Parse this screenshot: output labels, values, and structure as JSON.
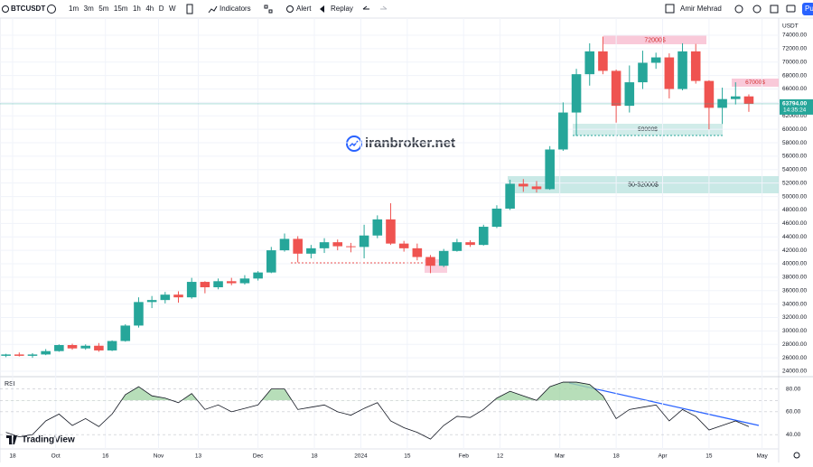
{
  "toolbar": {
    "symbol": "BTCUSDT",
    "intervals": [
      "1m",
      "3m",
      "5m",
      "15m",
      "1h",
      "4h",
      "D",
      "W"
    ],
    "indicators": "Indicators",
    "alert": "Alert",
    "replay": "Replay",
    "user": "Amir Mehrad",
    "publish": "Pu"
  },
  "watermark": "iranbroker.net",
  "logo": "TradingView",
  "chart_data": [
    {
      "type": "candlestick",
      "currency": "USDT",
      "x": [
        -2,
        2,
        6,
        10,
        14,
        18,
        22,
        26,
        30,
        34,
        38,
        42,
        46,
        50,
        54,
        58,
        62,
        66,
        70,
        74,
        78,
        82,
        86,
        90,
        94,
        98,
        102,
        106,
        110,
        114,
        118,
        122,
        126,
        130,
        134,
        138,
        142,
        146,
        150,
        154,
        158,
        162,
        166,
        170,
        174,
        178,
        182,
        186,
        190,
        194,
        198,
        202,
        206,
        210,
        214,
        218,
        222
      ],
      "open": [
        26300,
        26500,
        26300,
        26500,
        27000,
        27900,
        27400,
        27800,
        27100,
        28500,
        30800,
        34300,
        34600,
        35400,
        35000,
        37300,
        36500,
        37400,
        37100,
        37800,
        38700,
        42000,
        43700,
        41500,
        42300,
        43200,
        42600,
        42500,
        44200,
        46600,
        43000,
        42300,
        41000,
        39700,
        41900,
        43200,
        42800,
        45500,
        48200,
        51900,
        51500,
        51100,
        57000,
        62500,
        68200,
        71600,
        68700,
        63500,
        67000,
        69900,
        70700,
        66000,
        71600,
        67200,
        63200,
        64500,
        64900
      ],
      "high": [
        26600,
        26800,
        26700,
        27300,
        28000,
        28100,
        28000,
        28200,
        28600,
        31000,
        35000,
        35200,
        35800,
        35900,
        37900,
        37400,
        37800,
        37900,
        38300,
        38900,
        42500,
        44500,
        44100,
        42800,
        43800,
        43600,
        43100,
        45800,
        47200,
        49000,
        43400,
        43000,
        41300,
        42200,
        43700,
        43500,
        45800,
        48700,
        52500,
        52600,
        52300,
        57500,
        64000,
        69000,
        72800,
        73800,
        68900,
        69500,
        71700,
        71400,
        71300,
        72800,
        72700,
        67300,
        66200,
        67000,
        65200
      ],
      "low": [
        26100,
        26200,
        26000,
        26400,
        26900,
        27200,
        27200,
        26900,
        27000,
        28400,
        30500,
        33400,
        34100,
        34200,
        34800,
        35600,
        36200,
        36800,
        36900,
        37500,
        38600,
        41800,
        40200,
        40800,
        41600,
        42000,
        41700,
        40800,
        43800,
        42800,
        41800,
        40500,
        38600,
        39500,
        41800,
        42500,
        42700,
        45300,
        48000,
        50700,
        50600,
        51000,
        56800,
        59000,
        66500,
        68200,
        61000,
        62500,
        66000,
        69000,
        64600,
        65800,
        66800,
        60000,
        60800,
        63700,
        62600
      ],
      "close": [
        26500,
        26300,
        26500,
        27000,
        27900,
        27400,
        27800,
        27100,
        28500,
        30800,
        34300,
        34600,
        35400,
        35000,
        37300,
        36500,
        37400,
        37100,
        37800,
        38700,
        42000,
        43700,
        41500,
        42300,
        43200,
        42600,
        42500,
        44200,
        46600,
        43000,
        42300,
        41000,
        39700,
        41900,
        43200,
        42800,
        45500,
        48200,
        51900,
        51500,
        51100,
        57000,
        62500,
        68200,
        71600,
        68700,
        63500,
        67000,
        69900,
        70700,
        66000,
        71600,
        67200,
        63200,
        64500,
        64900,
        63794
      ],
      "up_color": "#26a69a",
      "down_color": "#ef5350",
      "xlim": [
        -3.8,
        231
      ],
      "xticks": [
        {
          "value": 0,
          "label": "18"
        },
        {
          "value": 13,
          "label": "Oct"
        },
        {
          "value": 28,
          "label": "16"
        },
        {
          "value": 44,
          "label": "Nov"
        },
        {
          "value": 56,
          "label": "13"
        },
        {
          "value": 74,
          "label": "Dec"
        },
        {
          "value": 91,
          "label": "18"
        },
        {
          "value": 105,
          "label": "2024"
        },
        {
          "value": 119,
          "label": "15"
        },
        {
          "value": 136,
          "label": "Feb"
        },
        {
          "value": 147,
          "label": "12"
        },
        {
          "value": 165,
          "label": "Mar"
        },
        {
          "value": 182,
          "label": "18"
        },
        {
          "value": 196,
          "label": "Apr"
        },
        {
          "value": 210,
          "label": "15"
        },
        {
          "value": 226,
          "label": "May"
        }
      ],
      "ylim": [
        23330,
        76285
      ],
      "yticks": [
        {
          "value": 24000,
          "label": "24000.00"
        },
        {
          "value": 26000,
          "label": "26000.00"
        },
        {
          "value": 28000,
          "label": "28000.00"
        },
        {
          "value": 30000,
          "label": "30000.00"
        },
        {
          "value": 32000,
          "label": "32000.00"
        },
        {
          "value": 34000,
          "label": "34000.00"
        },
        {
          "value": 36000,
          "label": "36000.00"
        },
        {
          "value": 38000,
          "label": "38000.00"
        },
        {
          "value": 40000,
          "label": "40000.00"
        },
        {
          "value": 42000,
          "label": "42000.00"
        },
        {
          "value": 44000,
          "label": "44000.00"
        },
        {
          "value": 46000,
          "label": "46000.00"
        },
        {
          "value": 48000,
          "label": "48000.00"
        },
        {
          "value": 50000,
          "label": "50000.00"
        },
        {
          "value": 52000,
          "label": "52000.00"
        },
        {
          "value": 54000,
          "label": "54000.00"
        },
        {
          "value": 56000,
          "label": "56000.00"
        },
        {
          "value": 58000,
          "label": "58000.00"
        },
        {
          "value": 60000,
          "label": "60000.00"
        },
        {
          "value": 62000,
          "label": "62000.00"
        },
        {
          "value": 64000,
          "label": "64000.00"
        },
        {
          "value": 66000,
          "label": "66000.00"
        },
        {
          "value": 68000,
          "label": "68000.00"
        },
        {
          "value": 70000,
          "label": "70000.00"
        },
        {
          "value": 72000,
          "label": "72000.00"
        },
        {
          "value": 74000,
          "label": "74000.00"
        }
      ],
      "last": {
        "value": 63794,
        "label": "63794.00"
      },
      "countdown": "14:35:24",
      "annotations": [
        "72000$",
        "67000$",
        "59000$",
        "50-52000$"
      ]
    },
    {
      "type": "line",
      "title": "RSI",
      "color": "#131722",
      "x": [
        -2,
        2,
        6,
        10,
        14,
        18,
        22,
        26,
        30,
        34,
        38,
        42,
        46,
        50,
        54,
        58,
        62,
        66,
        70,
        74,
        78,
        82,
        86,
        90,
        94,
        98,
        102,
        106,
        110,
        114,
        118,
        122,
        126,
        130,
        134,
        138,
        142,
        146,
        150,
        154,
        158,
        162,
        166,
        170,
        174,
        178,
        182,
        186,
        190,
        194,
        198,
        202,
        206,
        210,
        214,
        218,
        222
      ],
      "values": [
        42,
        38,
        40,
        52,
        58,
        48,
        54,
        47,
        58,
        75,
        82,
        74,
        72,
        68,
        76,
        62,
        66,
        60,
        63,
        66,
        80,
        80,
        62,
        64,
        66,
        60,
        57,
        63,
        68,
        52,
        46,
        42,
        36,
        48,
        56,
        55,
        62,
        72,
        78,
        74,
        70,
        82,
        86,
        86,
        84,
        74,
        54,
        62,
        64,
        66,
        52,
        62,
        56,
        44,
        48,
        52,
        47
      ],
      "overbought": 70,
      "fill_color": "#a5d6a7",
      "ylim": [
        29,
        90
      ],
      "yticks": [
        {
          "value": 40,
          "label": "40.00"
        },
        {
          "value": 60,
          "label": "60.00"
        },
        {
          "value": 80,
          "label": "80.00"
        }
      ]
    }
  ]
}
